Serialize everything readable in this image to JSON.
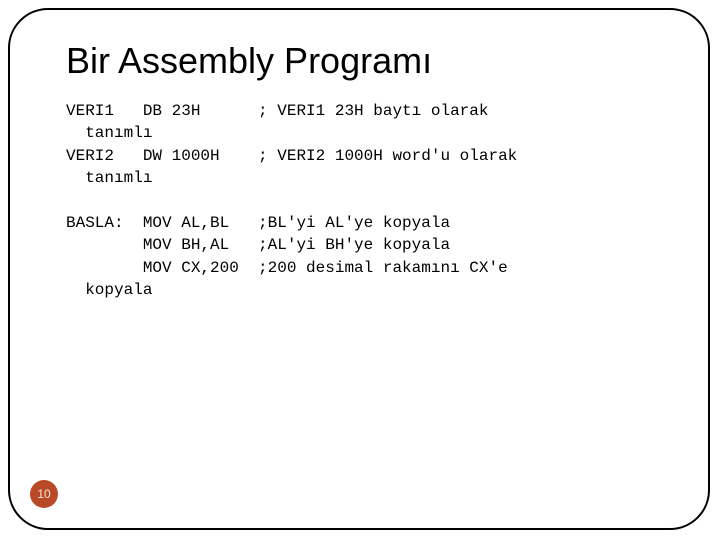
{
  "title": "Bir Assembly Programı",
  "code": {
    "lines": [
      "VERI1   DB 23H      ; VERI1 23H baytı olarak",
      "  tanımlı",
      "VERI2   DW 1000H    ; VERI2 1000H word'u olarak",
      "  tanımlı",
      "",
      "BASLA:  MOV AL,BL   ;BL'yi AL'ye kopyala",
      "        MOV BH,AL   ;AL'yi BH'ye kopyala",
      "        MOV CX,200  ;200 desimal rakamını CX'e",
      "  kopyala"
    ]
  },
  "page_number": "10",
  "styling": {
    "background_color": "#ffffff",
    "border_color": "#000000",
    "border_width": 2,
    "border_radius": 40,
    "title_fontsize": 36,
    "title_color": "#000000",
    "code_fontfamily": "Courier New",
    "code_fontsize": 16,
    "code_color": "#000000",
    "page_badge_bg": "#b84a28",
    "page_badge_color": "#f5e6d8",
    "page_badge_fontsize": 12
  }
}
